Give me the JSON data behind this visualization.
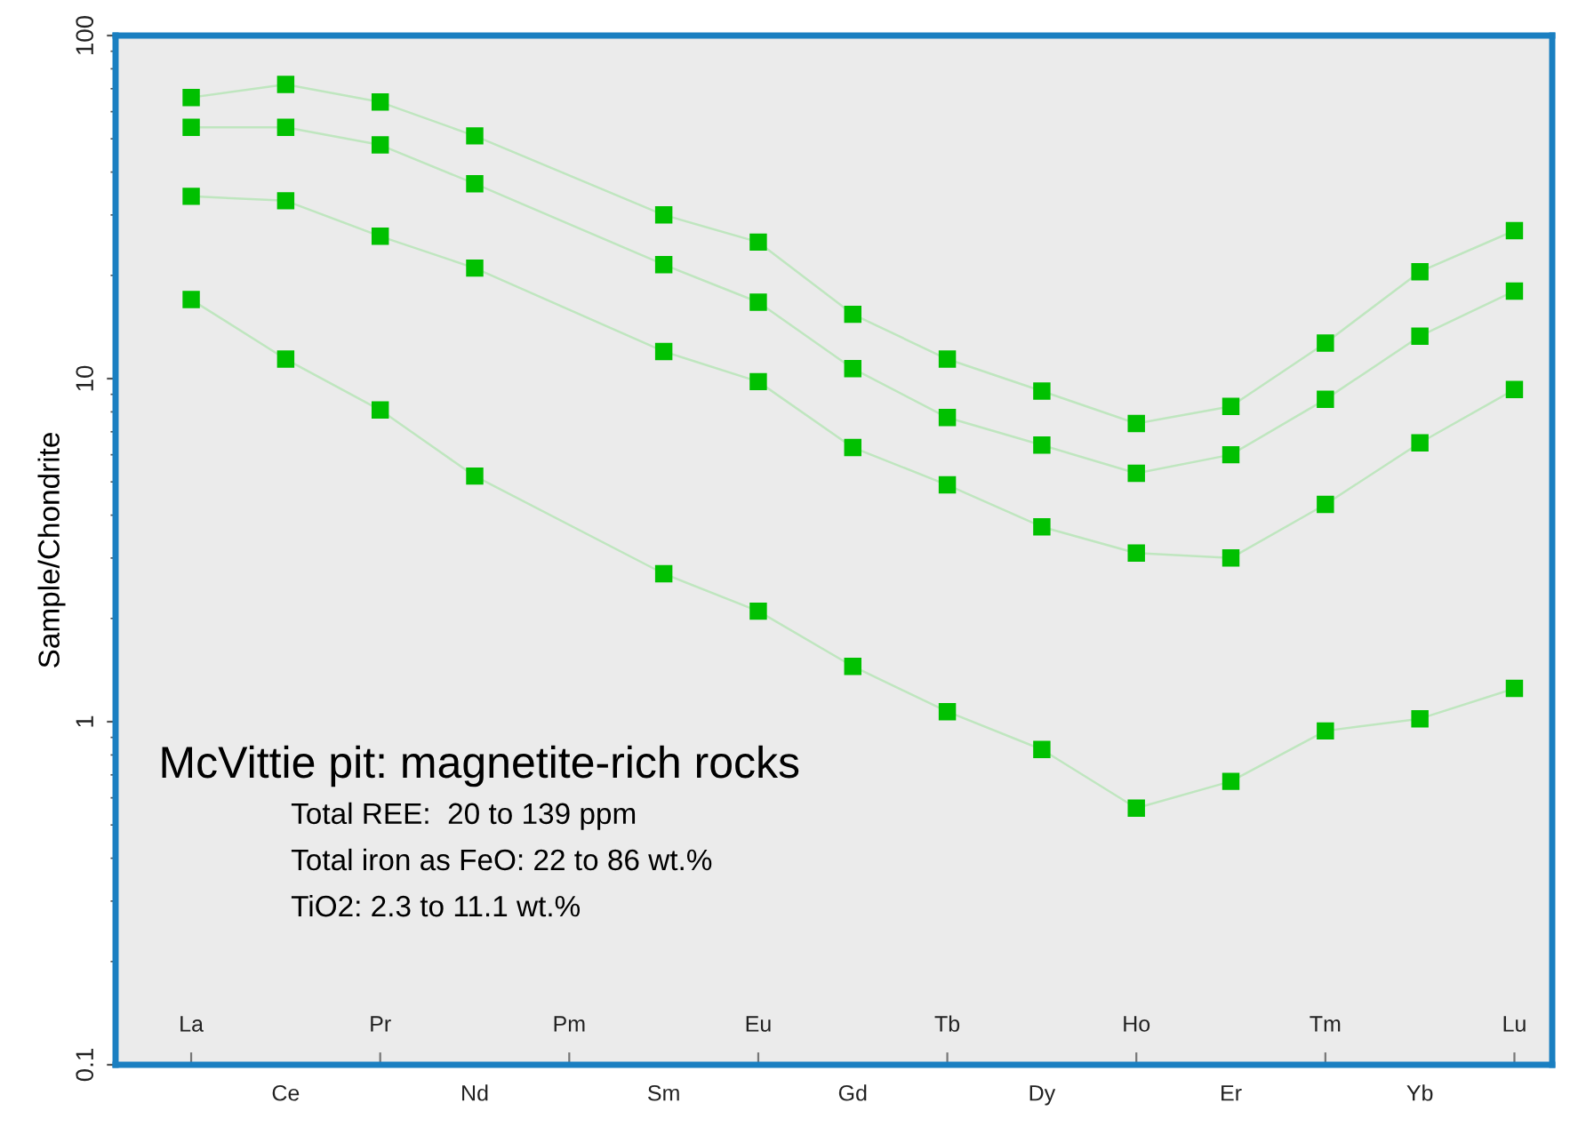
{
  "chart_data": {
    "type": "line",
    "title": "McVittie pit: magnetite-rich rocks",
    "ylabel": "Sample/Chondrite",
    "annotations": [
      "Total REE:  20 to 139 ppm",
      "Total iron as FeO: 22 to 86 wt.%",
      "TiO2: 2.3 to 11.1 wt.%"
    ],
    "categories": [
      "La",
      "Ce",
      "Pr",
      "Nd",
      "Pm",
      "Sm",
      "Eu",
      "Gd",
      "Tb",
      "Dy",
      "Ho",
      "Er",
      "Tm",
      "Yb",
      "Lu"
    ],
    "series": [
      {
        "color": "#00c000",
        "values": [
          66,
          72,
          64,
          51,
          null,
          30,
          25,
          15.4,
          11.4,
          9.2,
          7.4,
          8.3,
          12.7,
          20.5,
          27
        ]
      },
      {
        "color": "#00c000",
        "values": [
          54,
          54,
          48,
          37,
          null,
          21.5,
          16.7,
          10.7,
          7.7,
          6.4,
          5.3,
          6.0,
          8.7,
          13.3,
          18
        ]
      },
      {
        "color": "#00c000",
        "values": [
          34,
          33,
          26,
          21,
          null,
          12,
          9.8,
          6.3,
          4.9,
          3.7,
          3.1,
          3.0,
          4.3,
          6.5,
          9.3
        ]
      },
      {
        "color": "#00c000",
        "values": [
          17,
          11.4,
          8.1,
          5.2,
          null,
          2.7,
          2.1,
          1.45,
          1.07,
          0.83,
          0.56,
          0.67,
          0.94,
          1.02,
          1.25
        ]
      }
    ],
    "log": true,
    "ylim": [
      0.1,
      100
    ],
    "yticks": [
      0.1,
      1,
      10,
      100
    ],
    "grid": false,
    "legend": false,
    "marker": "square",
    "line_style": "solid"
  }
}
